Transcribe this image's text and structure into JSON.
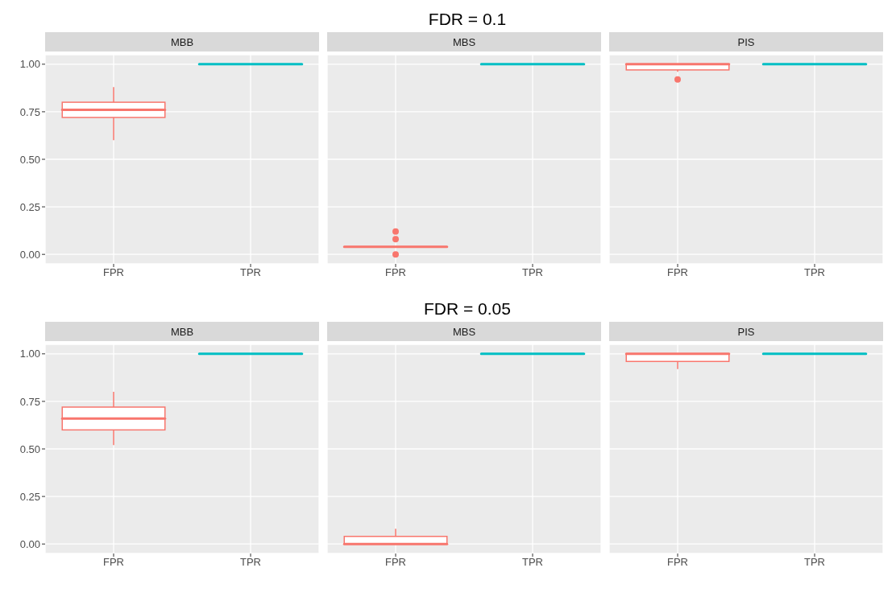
{
  "chart_data": [
    {
      "type": "box",
      "title": "MBB",
      "annotations": [
        "FDR = 0.1"
      ],
      "categories": [
        "FPR",
        "TPR"
      ],
      "colors": [
        "#f8766d",
        "#00bfc4"
      ],
      "boxes": [
        {
          "low": 0.6,
          "q1": 0.72,
          "median": 0.76,
          "q3": 0.8,
          "high": 0.88
        },
        {
          "low": 1,
          "q1": 1,
          "median": 1,
          "q3": 1,
          "high": 1
        }
      ],
      "ylim": [
        -0.05,
        1.05
      ],
      "yticks": [
        {
          "value": 0,
          "label": "0.00"
        },
        {
          "value": 0.25,
          "label": "0.25"
        },
        {
          "value": 0.5,
          "label": "0.50"
        },
        {
          "value": 0.75,
          "label": "0.75"
        },
        {
          "value": 1,
          "label": "1.00"
        }
      ],
      "grid": true
    },
    {
      "type": "box",
      "title": "MBS",
      "categories": [
        "FPR",
        "TPR"
      ],
      "colors": [
        "#f8766d",
        "#00bfc4"
      ],
      "boxes": [
        {
          "low": 0.04,
          "q1": 0.04,
          "median": 0.04,
          "q3": 0.04,
          "high": 0.04,
          "outliers": [
            0,
            0.08,
            0.12
          ]
        },
        {
          "low": 1,
          "q1": 1,
          "median": 1,
          "q3": 1,
          "high": 1
        }
      ],
      "ylim": [
        -0.05,
        1.05
      ],
      "yticks": [
        0,
        0.25,
        0.5,
        0.75,
        1
      ],
      "grid": true,
      "tick_labels": "x"
    },
    {
      "type": "box",
      "title": "PIS",
      "categories": [
        "FPR",
        "TPR"
      ],
      "colors": [
        "#f8766d",
        "#00bfc4"
      ],
      "boxes": [
        {
          "low": 0.96,
          "q1": 0.97,
          "median": 1,
          "q3": 1,
          "high": 1,
          "outliers": [
            0.92
          ]
        },
        {
          "low": 1,
          "q1": 1,
          "median": 1,
          "q3": 1,
          "high": 1
        }
      ],
      "ylim": [
        -0.05,
        1.05
      ],
      "yticks": [
        0,
        0.25,
        0.5,
        0.75,
        1
      ],
      "grid": true,
      "tick_labels": "x"
    },
    {
      "type": "box",
      "title": "MBB",
      "annotations": [
        "FDR = 0.05"
      ],
      "categories": [
        "FPR",
        "TPR"
      ],
      "colors": [
        "#f8766d",
        "#00bfc4"
      ],
      "boxes": [
        {
          "low": 0.52,
          "q1": 0.6,
          "median": 0.66,
          "q3": 0.72,
          "high": 0.8
        },
        {
          "low": 1,
          "q1": 1,
          "median": 1,
          "q3": 1,
          "high": 1
        }
      ],
      "ylim": [
        -0.05,
        1.05
      ],
      "yticks": [
        {
          "value": 0,
          "label": "0.00"
        },
        {
          "value": 0.25,
          "label": "0.25"
        },
        {
          "value": 0.5,
          "label": "0.50"
        },
        {
          "value": 0.75,
          "label": "0.75"
        },
        {
          "value": 1,
          "label": "1.00"
        }
      ],
      "grid": true
    },
    {
      "type": "box",
      "title": "MBS",
      "categories": [
        "FPR",
        "TPR"
      ],
      "colors": [
        "#f8766d",
        "#00bfc4"
      ],
      "boxes": [
        {
          "low": 0,
          "q1": 0,
          "median": 0,
          "q3": 0.04,
          "high": 0.08
        },
        {
          "low": 1,
          "q1": 1,
          "median": 1,
          "q3": 1,
          "high": 1
        }
      ],
      "ylim": [
        -0.05,
        1.05
      ],
      "yticks": [
        0,
        0.25,
        0.5,
        0.75,
        1
      ],
      "grid": true,
      "tick_labels": "x"
    },
    {
      "type": "box",
      "title": "PIS",
      "categories": [
        "FPR",
        "TPR"
      ],
      "colors": [
        "#f8766d",
        "#00bfc4"
      ],
      "boxes": [
        {
          "low": 0.92,
          "q1": 0.96,
          "median": 1,
          "q3": 1,
          "high": 1
        },
        {
          "low": 1,
          "q1": 1,
          "median": 1,
          "q3": 1,
          "high": 1
        }
      ],
      "ylim": [
        -0.05,
        1.05
      ],
      "yticks": [
        0,
        0.25,
        0.5,
        0.75,
        1
      ],
      "grid": true,
      "tick_labels": "x"
    }
  ]
}
